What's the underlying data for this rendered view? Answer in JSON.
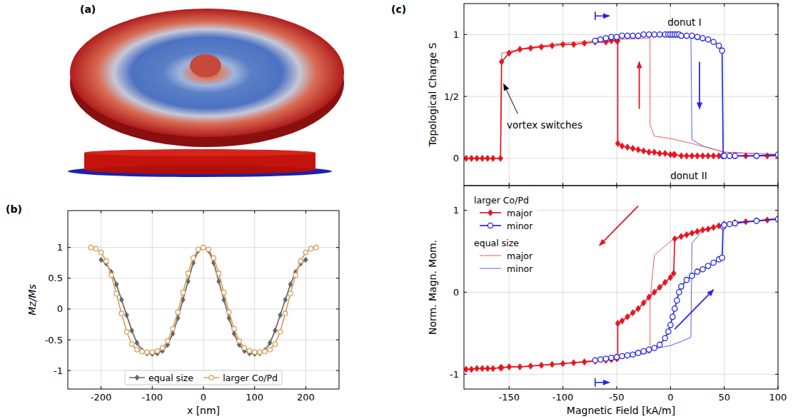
{
  "illustration": {
    "label": "(a)"
  },
  "chart_data": [
    {
      "type": "line",
      "title": "(b)",
      "xlabel": "x [nm]",
      "ylabel": "Mz/Ms",
      "xlim": [
        -265,
        265
      ],
      "xticks": [
        -200,
        -100,
        0,
        100,
        200
      ],
      "ylim": [
        -1.3,
        1.6
      ],
      "yticks": [
        -1,
        -0.5,
        0,
        0.5,
        1
      ],
      "grid": true,
      "legend": "lower center",
      "series": [
        {
          "name": "equal size",
          "color": "#666666",
          "marker": "diamond",
          "line_style": "solid",
          "x": [
            -200,
            -190,
            -180,
            -170,
            -160,
            -150,
            -140,
            -130,
            -120,
            -110,
            -100,
            -90,
            -80,
            -70,
            -60,
            -50,
            -40,
            -30,
            -20,
            -10,
            0,
            10,
            20,
            30,
            40,
            50,
            60,
            70,
            80,
            90,
            100,
            110,
            120,
            130,
            140,
            150,
            160,
            170,
            180,
            190,
            200
          ],
          "values": [
            0.8,
            0.74,
            0.6,
            0.4,
            0.15,
            -0.1,
            -0.35,
            -0.55,
            -0.67,
            -0.72,
            -0.73,
            -0.72,
            -0.68,
            -0.58,
            -0.4,
            -0.15,
            0.15,
            0.45,
            0.75,
            0.95,
            1.0,
            0.95,
            0.75,
            0.45,
            0.15,
            -0.15,
            -0.4,
            -0.58,
            -0.68,
            -0.72,
            -0.73,
            -0.72,
            -0.67,
            -0.55,
            -0.35,
            -0.1,
            0.15,
            0.4,
            0.6,
            0.74,
            0.8
          ]
        },
        {
          "name": "larger Co/Pd",
          "color": "#d9a05b",
          "marker": "circle",
          "line_style": "solid",
          "x": [
            -220,
            -210,
            -200,
            -190,
            -180,
            -170,
            -160,
            -150,
            -140,
            -130,
            -120,
            -110,
            -100,
            -90,
            -80,
            -70,
            -60,
            -50,
            -40,
            -30,
            -20,
            -10,
            0,
            10,
            20,
            30,
            40,
            50,
            60,
            70,
            80,
            90,
            100,
            110,
            120,
            130,
            140,
            150,
            160,
            170,
            180,
            190,
            200,
            210,
            220
          ],
          "values": [
            1.0,
            0.98,
            0.92,
            0.78,
            0.55,
            0.25,
            -0.07,
            -0.37,
            -0.57,
            -0.66,
            -0.69,
            -0.7,
            -0.7,
            -0.68,
            -0.63,
            -0.52,
            -0.32,
            -0.05,
            0.27,
            0.58,
            0.83,
            0.97,
            1.0,
            0.97,
            0.83,
            0.58,
            0.27,
            -0.05,
            -0.32,
            -0.52,
            -0.63,
            -0.68,
            -0.7,
            -0.7,
            -0.69,
            -0.66,
            -0.57,
            -0.37,
            -0.07,
            0.25,
            0.55,
            0.78,
            0.92,
            0.98,
            1.0
          ]
        }
      ]
    },
    {
      "type": "line",
      "title": "(c)",
      "xlabel": "Magnetic Field [kA/m]",
      "xlim": [
        -192,
        100
      ],
      "xticks": [
        -150,
        -100,
        -50,
        0,
        50,
        100
      ],
      "grid": true,
      "legend": "upper left",
      "subplots": [
        {
          "ylabel": "Topological Charge S",
          "ylim": [
            -0.22,
            1.25
          ],
          "yticks": [
            0,
            {
              "value": 0.5,
              "label": "1/2"
            },
            1
          ],
          "annotations": [
            "donut I",
            "donut II",
            "vortex switches"
          ]
        },
        {
          "ylabel": "Norm. Magn. Mom.",
          "ylim": [
            -1.18,
            1.3
          ],
          "yticks": [
            -1,
            0,
            1
          ]
        }
      ],
      "series": [
        {
          "name": "major",
          "group": "larger Co/Pd",
          "color": "#e8141e",
          "marker": "diamond",
          "line_style": "solid",
          "x": [
            -190,
            -185,
            -180,
            -175,
            -170,
            -165,
            -158,
            -157,
            -150,
            -140,
            -130,
            -120,
            -110,
            -100,
            -90,
            -80,
            -70,
            -60,
            -55,
            -50,
            -49,
            -49,
            -45,
            -40,
            -35,
            -30,
            -25,
            -20,
            -15,
            -10,
            -5,
            0,
            3,
            4,
            10,
            15,
            20,
            25,
            30,
            35,
            40,
            45,
            50,
            60,
            70,
            80,
            90,
            100
          ],
          "charge": [
            0,
            0,
            0,
            0,
            0,
            0,
            0,
            0.78,
            0.85,
            0.88,
            0.89,
            0.9,
            0.91,
            0.92,
            0.92,
            0.93,
            0.94,
            0.94,
            0.95,
            0.95,
            0.95,
            0.12,
            0.1,
            0.09,
            0.08,
            0.07,
            0.06,
            0.05,
            0.05,
            0.04,
            0.04,
            0.03,
            0.03,
            0.03,
            0.02,
            0.02,
            0.02,
            0.02,
            0.02,
            0.02,
            0.02,
            0.02,
            0.02,
            0.02,
            0.02,
            0.02,
            0.02,
            0.02
          ],
          "moment": [
            -0.94,
            -0.94,
            -0.93,
            -0.93,
            -0.93,
            -0.93,
            -0.92,
            -0.92,
            -0.91,
            -0.91,
            -0.9,
            -0.89,
            -0.88,
            -0.87,
            -0.86,
            -0.85,
            -0.84,
            -0.83,
            -0.82,
            -0.81,
            -0.8,
            -0.38,
            -0.35,
            -0.3,
            -0.25,
            -0.2,
            -0.13,
            -0.06,
            0.0,
            0.06,
            0.12,
            0.18,
            0.23,
            0.65,
            0.68,
            0.7,
            0.72,
            0.74,
            0.76,
            0.77,
            0.79,
            0.81,
            0.83,
            0.85,
            0.86,
            0.87,
            0.88,
            0.9
          ]
        },
        {
          "name": "minor",
          "group": "larger Co/Pd",
          "color": "#2626e6",
          "marker": "circle",
          "line_style": "solid",
          "x": [
            -70,
            -65,
            -60,
            -55,
            -50,
            -45,
            -40,
            -35,
            -30,
            -25,
            -20,
            -15,
            -10,
            -5,
            -2,
            0,
            2,
            4,
            6,
            8,
            10,
            15,
            20,
            25,
            30,
            35,
            40,
            45,
            48,
            49,
            50,
            55,
            60,
            80,
            100
          ],
          "charge": [
            0.95,
            0.96,
            0.97,
            0.98,
            0.98,
            0.99,
            0.99,
            0.99,
            0.99,
            1.0,
            1.0,
            1.0,
            1.0,
            1.0,
            1.0,
            1.0,
            1.0,
            1.0,
            1.0,
            1.0,
            0.99,
            0.99,
            0.99,
            0.98,
            0.97,
            0.96,
            0.94,
            0.91,
            0.87,
            0.02,
            0.02,
            0.02,
            0.02,
            0.02,
            0.03
          ],
          "moment": [
            -0.83,
            -0.82,
            -0.81,
            -0.8,
            -0.79,
            -0.78,
            -0.77,
            -0.76,
            -0.74,
            -0.72,
            -0.7,
            -0.68,
            -0.64,
            -0.56,
            -0.48,
            -0.4,
            -0.3,
            -0.2,
            -0.1,
            0.0,
            0.07,
            0.15,
            0.2,
            0.25,
            0.28,
            0.32,
            0.36,
            0.4,
            0.42,
            0.8,
            0.82,
            0.83,
            0.84,
            0.87,
            0.89
          ]
        },
        {
          "name": "major",
          "group": "equal size",
          "color": "#f05a5a",
          "marker": "none",
          "line_style": "solid",
          "x": [
            -190,
            -158,
            -157,
            -130,
            -100,
            -50,
            -19,
            -19,
            -15,
            0,
            5,
            20,
            50,
            100
          ],
          "charge": [
            0,
            0,
            0.85,
            0.9,
            0.93,
            0.96,
            0.97,
            0.27,
            0.18,
            0.16,
            0.15,
            0.12,
            0.05,
            0.03
          ],
          "moment": [
            -0.94,
            -0.92,
            -0.92,
            -0.9,
            -0.87,
            -0.8,
            -0.74,
            -0.1,
            0.45,
            0.62,
            0.66,
            0.73,
            0.83,
            0.9
          ]
        },
        {
          "name": "minor",
          "group": "equal size",
          "color": "#5a5af0",
          "marker": "none",
          "line_style": "solid",
          "x": [
            -70,
            0,
            10,
            19,
            20,
            30,
            50,
            100
          ],
          "charge": [
            0.97,
            1.0,
            0.99,
            0.98,
            0.15,
            0.1,
            0.05,
            0.03
          ],
          "moment": [
            -0.83,
            -0.65,
            -0.6,
            -0.55,
            0.6,
            0.75,
            0.83,
            0.9
          ]
        }
      ]
    }
  ]
}
